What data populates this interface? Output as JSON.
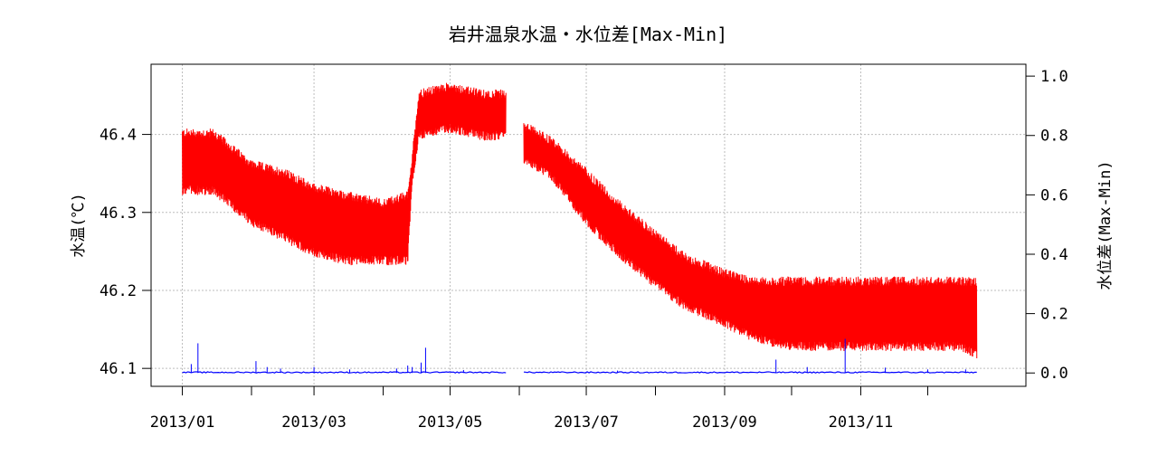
{
  "chart_data": {
    "type": "line",
    "title": "岩井温泉水温・水位差[Max-Min]",
    "ylabel": "水温(℃)",
    "y2label": "水位差(Max-Min)",
    "xlim": [
      "2012-12-18",
      "2014-01-14"
    ],
    "ylim": [
      46.077,
      46.49
    ],
    "y2lim": [
      -0.045,
      1.04
    ],
    "x_ticks": [
      {
        "date": "2013-01-01",
        "label": "2013/01"
      },
      {
        "date": "2013-02-01",
        "label": ""
      },
      {
        "date": "2013-03-01",
        "label": "2013/03"
      },
      {
        "date": "2013-04-01",
        "label": ""
      },
      {
        "date": "2013-05-01",
        "label": "2013/05"
      },
      {
        "date": "2013-06-01",
        "label": ""
      },
      {
        "date": "2013-07-01",
        "label": "2013/07"
      },
      {
        "date": "2013-08-01",
        "label": ""
      },
      {
        "date": "2013-09-01",
        "label": "2013/09"
      },
      {
        "date": "2013-10-01",
        "label": ""
      },
      {
        "date": "2013-11-01",
        "label": "2013/11"
      },
      {
        "date": "2013-12-01",
        "label": ""
      }
    ],
    "y_ticks": [
      "46.1",
      "46.2",
      "46.3",
      "46.4"
    ],
    "y2_ticks": [
      "0.0",
      "0.2",
      "0.4",
      "0.6",
      "0.8",
      "1.0"
    ],
    "grid": true,
    "series": [
      {
        "axis": "left",
        "color": "#ff0000",
        "style": "band",
        "segments": [
          [
            {
              "x": "2013-01-01",
              "low": 46.33,
              "high": 46.4
            },
            {
              "x": "2013-01-15",
              "low": 46.33,
              "high": 46.4
            },
            {
              "x": "2013-02-01",
              "low": 46.29,
              "high": 46.36
            },
            {
              "x": "2013-02-15",
              "low": 46.27,
              "high": 46.35
            },
            {
              "x": "2013-03-01",
              "low": 46.25,
              "high": 46.33
            },
            {
              "x": "2013-03-15",
              "low": 46.24,
              "high": 46.32
            },
            {
              "x": "2013-04-01",
              "low": 46.24,
              "high": 46.31
            },
            {
              "x": "2013-04-12",
              "low": 46.24,
              "high": 46.32
            },
            {
              "x": "2013-04-14",
              "low": 46.34,
              "high": 46.37
            },
            {
              "x": "2013-04-17",
              "low": 46.4,
              "high": 46.45
            },
            {
              "x": "2013-05-01",
              "low": 46.41,
              "high": 46.46
            },
            {
              "x": "2013-05-15",
              "low": 46.4,
              "high": 46.45
            },
            {
              "x": "2013-05-26",
              "low": 46.4,
              "high": 46.45
            }
          ],
          [
            {
              "x": "2013-06-03",
              "low": 46.37,
              "high": 46.41
            },
            {
              "x": "2013-06-15",
              "low": 46.35,
              "high": 46.39
            },
            {
              "x": "2013-07-01",
              "low": 46.29,
              "high": 46.35
            },
            {
              "x": "2013-07-15",
              "low": 46.25,
              "high": 46.31
            },
            {
              "x": "2013-08-01",
              "low": 46.21,
              "high": 46.27
            },
            {
              "x": "2013-08-15",
              "low": 46.18,
              "high": 46.24
            },
            {
              "x": "2013-09-01",
              "low": 46.16,
              "high": 46.22
            },
            {
              "x": "2013-09-15",
              "low": 46.14,
              "high": 46.21
            },
            {
              "x": "2013-10-01",
              "low": 46.13,
              "high": 46.21
            },
            {
              "x": "2013-10-15",
              "low": 46.13,
              "high": 46.21
            },
            {
              "x": "2013-11-01",
              "low": 46.13,
              "high": 46.21
            },
            {
              "x": "2013-11-15",
              "low": 46.13,
              "high": 46.21
            },
            {
              "x": "2013-12-01",
              "low": 46.13,
              "high": 46.21
            },
            {
              "x": "2013-12-15",
              "low": 46.13,
              "high": 46.21
            },
            {
              "x": "2013-12-23",
              "low": 46.12,
              "high": 46.21
            }
          ]
        ]
      },
      {
        "axis": "right",
        "color": "#0000ff",
        "style": "line",
        "segments": [
          {
            "start": "2013-01-01",
            "end": "2013-05-26",
            "base": 0.0
          },
          {
            "start": "2013-06-03",
            "end": "2013-12-23",
            "base": 0.0
          }
        ],
        "spikes": [
          {
            "x": "2013-01-05",
            "y": 0.03
          },
          {
            "x": "2013-01-08",
            "y": 0.1
          },
          {
            "x": "2013-02-03",
            "y": 0.04
          },
          {
            "x": "2013-02-08",
            "y": 0.02
          },
          {
            "x": "2013-02-14",
            "y": 0.015
          },
          {
            "x": "2013-03-01",
            "y": 0.02
          },
          {
            "x": "2013-03-17",
            "y": 0.012
          },
          {
            "x": "2013-04-07",
            "y": 0.015
          },
          {
            "x": "2013-04-12",
            "y": 0.025
          },
          {
            "x": "2013-04-14",
            "y": 0.02
          },
          {
            "x": "2013-04-18",
            "y": 0.035
          },
          {
            "x": "2013-04-20",
            "y": 0.085
          },
          {
            "x": "2013-05-07",
            "y": 0.01
          },
          {
            "x": "2013-07-15",
            "y": 0.008
          },
          {
            "x": "2013-09-24",
            "y": 0.045
          },
          {
            "x": "2013-10-08",
            "y": 0.02
          },
          {
            "x": "2013-10-25",
            "y": 0.115
          },
          {
            "x": "2013-11-12",
            "y": 0.018
          },
          {
            "x": "2013-12-01",
            "y": 0.012
          },
          {
            "x": "2013-12-18",
            "y": 0.012
          }
        ]
      }
    ]
  }
}
